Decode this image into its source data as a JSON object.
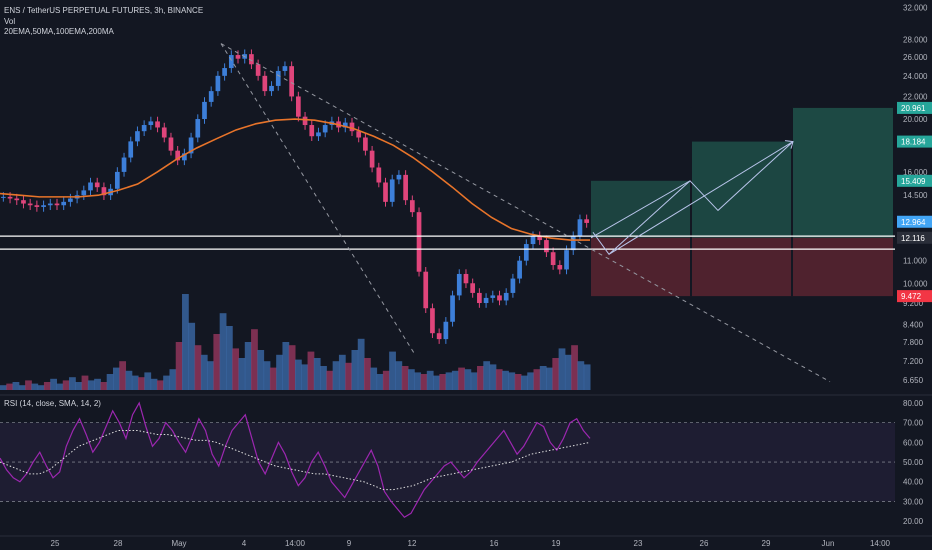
{
  "header": {
    "title": "ENS / TetherUS PERPETUAL FUTURES, 3h, BINANCE",
    "vol_label": "Vol",
    "ema_label": "20EMA,50MA,100EMA,200MA"
  },
  "rsi_header": "RSI (14, close, SMA, 14, 2)",
  "colors": {
    "background": "#131722",
    "up": "#26a69a",
    "down": "#ef5350",
    "candle_up": "#3d7fd9",
    "candle_down": "#e0457b",
    "ma": "#e8742a",
    "rsi": "#9c27b0",
    "rsi_band": "#7e57c2",
    "support": "#ffffff",
    "profit_zone": "#1f4f48",
    "loss_zone": "#5a2430"
  },
  "chart_data": [
    {
      "type": "candlestick",
      "title": "ENS / TetherUS PERPETUAL FUTURES, 3h, BINANCE",
      "y_scale": "log",
      "ylim": [
        6.4,
        32.5
      ],
      "price_ticks": [
        "32.000",
        "28.000",
        "26.000",
        "24.000",
        "22.000",
        "20.000",
        "18.000",
        "16.000",
        "14.500",
        "13.000",
        "11.000",
        "10.000",
        "9.200",
        "8.400",
        "7.800",
        "7.200",
        "6.650"
      ],
      "x_ticks": [
        "25",
        "28",
        "May",
        "4",
        "14:00",
        "9",
        "12",
        "16",
        "19",
        "23",
        "26",
        "29",
        "Jun",
        "14:00"
      ],
      "price_labels": [
        {
          "text": "20.961",
          "value": 20.961,
          "color": "#26a69a"
        },
        {
          "text": "18.184",
          "value": 18.184,
          "color": "#26a69a"
        },
        {
          "text": "15.409",
          "value": 15.409,
          "color": "#26a69a"
        },
        {
          "text": "12.964",
          "value": 12.964,
          "color": "#42a5f5"
        },
        {
          "text": "12.116",
          "value": 12.116,
          "color": "#2a2e39"
        },
        {
          "text": "9.472",
          "value": 9.472,
          "color": "#f23645"
        }
      ],
      "support_levels": [
        12.2,
        11.55
      ],
      "close_path": [
        14.4,
        14.3,
        14.2,
        14.0,
        13.9,
        13.8,
        13.9,
        14.0,
        13.9,
        14.1,
        14.3,
        14.5,
        14.8,
        15.3,
        15.0,
        14.5,
        14.9,
        16.0,
        17.0,
        18.2,
        19.0,
        19.5,
        19.8,
        19.3,
        18.5,
        17.5,
        16.8,
        17.3,
        18.5,
        20.0,
        21.5,
        22.5,
        24.0,
        24.8,
        26.2,
        25.8,
        26.3,
        25.2,
        24.0,
        22.5,
        23.0,
        24.5,
        25.0,
        22.0,
        20.2,
        19.5,
        18.6,
        18.9,
        19.5,
        19.8,
        19.3,
        19.7,
        19.0,
        18.5,
        17.5,
        16.3,
        15.3,
        14.1,
        15.5,
        15.8,
        14.2,
        13.5,
        10.5,
        9.0,
        8.1,
        7.9,
        8.5,
        9.5,
        10.4,
        10.0,
        9.6,
        9.2,
        9.4,
        9.5,
        9.3,
        9.6,
        10.2,
        11.0,
        11.8,
        12.2,
        12.0,
        11.4,
        10.8,
        10.6,
        11.5,
        12.2,
        13.1,
        12.9
      ],
      "ma_path": [
        14.6,
        14.5,
        14.4,
        14.4,
        14.4,
        14.5,
        14.8,
        15.2,
        16.0,
        16.9,
        17.7,
        18.4,
        19.1,
        19.6,
        19.9,
        20.0,
        19.9,
        19.6,
        19.2,
        18.6,
        17.9,
        17.0,
        16.0,
        15.0,
        14.0,
        13.2,
        12.6,
        12.3,
        12.1,
        12.0,
        12.0
      ],
      "volume_heights": [
        3,
        4,
        5,
        3,
        6,
        4,
        3,
        5,
        7,
        4,
        6,
        8,
        5,
        9,
        6,
        7,
        5,
        10,
        14,
        18,
        12,
        9,
        8,
        11,
        7,
        6,
        9,
        13,
        30,
        60,
        42,
        28,
        22,
        18,
        35,
        48,
        40,
        26,
        20,
        30,
        38,
        25,
        18,
        14,
        22,
        30,
        28,
        19,
        16,
        24,
        20,
        15,
        12,
        18,
        22,
        17,
        25,
        32,
        20,
        14,
        10,
        12,
        24,
        18,
        15,
        13,
        11,
        10,
        12,
        9,
        10,
        11,
        12,
        14,
        13,
        11,
        15,
        18,
        16,
        13,
        12,
        11,
        10,
        9,
        11,
        13,
        15,
        14,
        20,
        26,
        22,
        28,
        18,
        16
      ],
      "trade_setup": {
        "entry": 12.116,
        "take_profit": [
          15.409,
          18.184,
          20.961
        ],
        "stop_loss": 9.472,
        "projection": [
          12.116,
          15.409,
          13.6,
          18.184
        ]
      }
    },
    {
      "type": "line",
      "title": "RSI (14, close, SMA, 14, 2)",
      "ylim": [
        15,
        82
      ],
      "y_ticks": [
        "80.00",
        "70.00",
        "60.00",
        "50.00",
        "40.00",
        "30.00",
        "20.00"
      ],
      "bands": [
        70,
        50,
        30
      ],
      "rsi_path": [
        52,
        46,
        42,
        40,
        44,
        50,
        55,
        48,
        42,
        45,
        58,
        66,
        72,
        64,
        55,
        60,
        68,
        76,
        70,
        62,
        74,
        80,
        68,
        58,
        62,
        70,
        66,
        60,
        55,
        63,
        72,
        66,
        54,
        48,
        58,
        66,
        70,
        74,
        62,
        50,
        44,
        52,
        60,
        54,
        45,
        38,
        42,
        50,
        55,
        48,
        40,
        36,
        32,
        38,
        44,
        50,
        56,
        48,
        35,
        30,
        26,
        22,
        24,
        30,
        36,
        40,
        44,
        48,
        50,
        46,
        42,
        45,
        50,
        54,
        58,
        62,
        66,
        60,
        54,
        58,
        64,
        70,
        68,
        60,
        56,
        62,
        70,
        72,
        66,
        62
      ],
      "rsi_ma_path": [
        50,
        48,
        46,
        44,
        44,
        46,
        50,
        54,
        58,
        60,
        62,
        64,
        66,
        66,
        66,
        65,
        64,
        64,
        63,
        62,
        61,
        61,
        60,
        58,
        56,
        54,
        52,
        50,
        48,
        47,
        46,
        45,
        44,
        44,
        43,
        42,
        41,
        40,
        38,
        36,
        36,
        37,
        38,
        40,
        42,
        43,
        44,
        45,
        46,
        47,
        48,
        49,
        50,
        52,
        54,
        55,
        56,
        57,
        58,
        59,
        60
      ]
    }
  ]
}
